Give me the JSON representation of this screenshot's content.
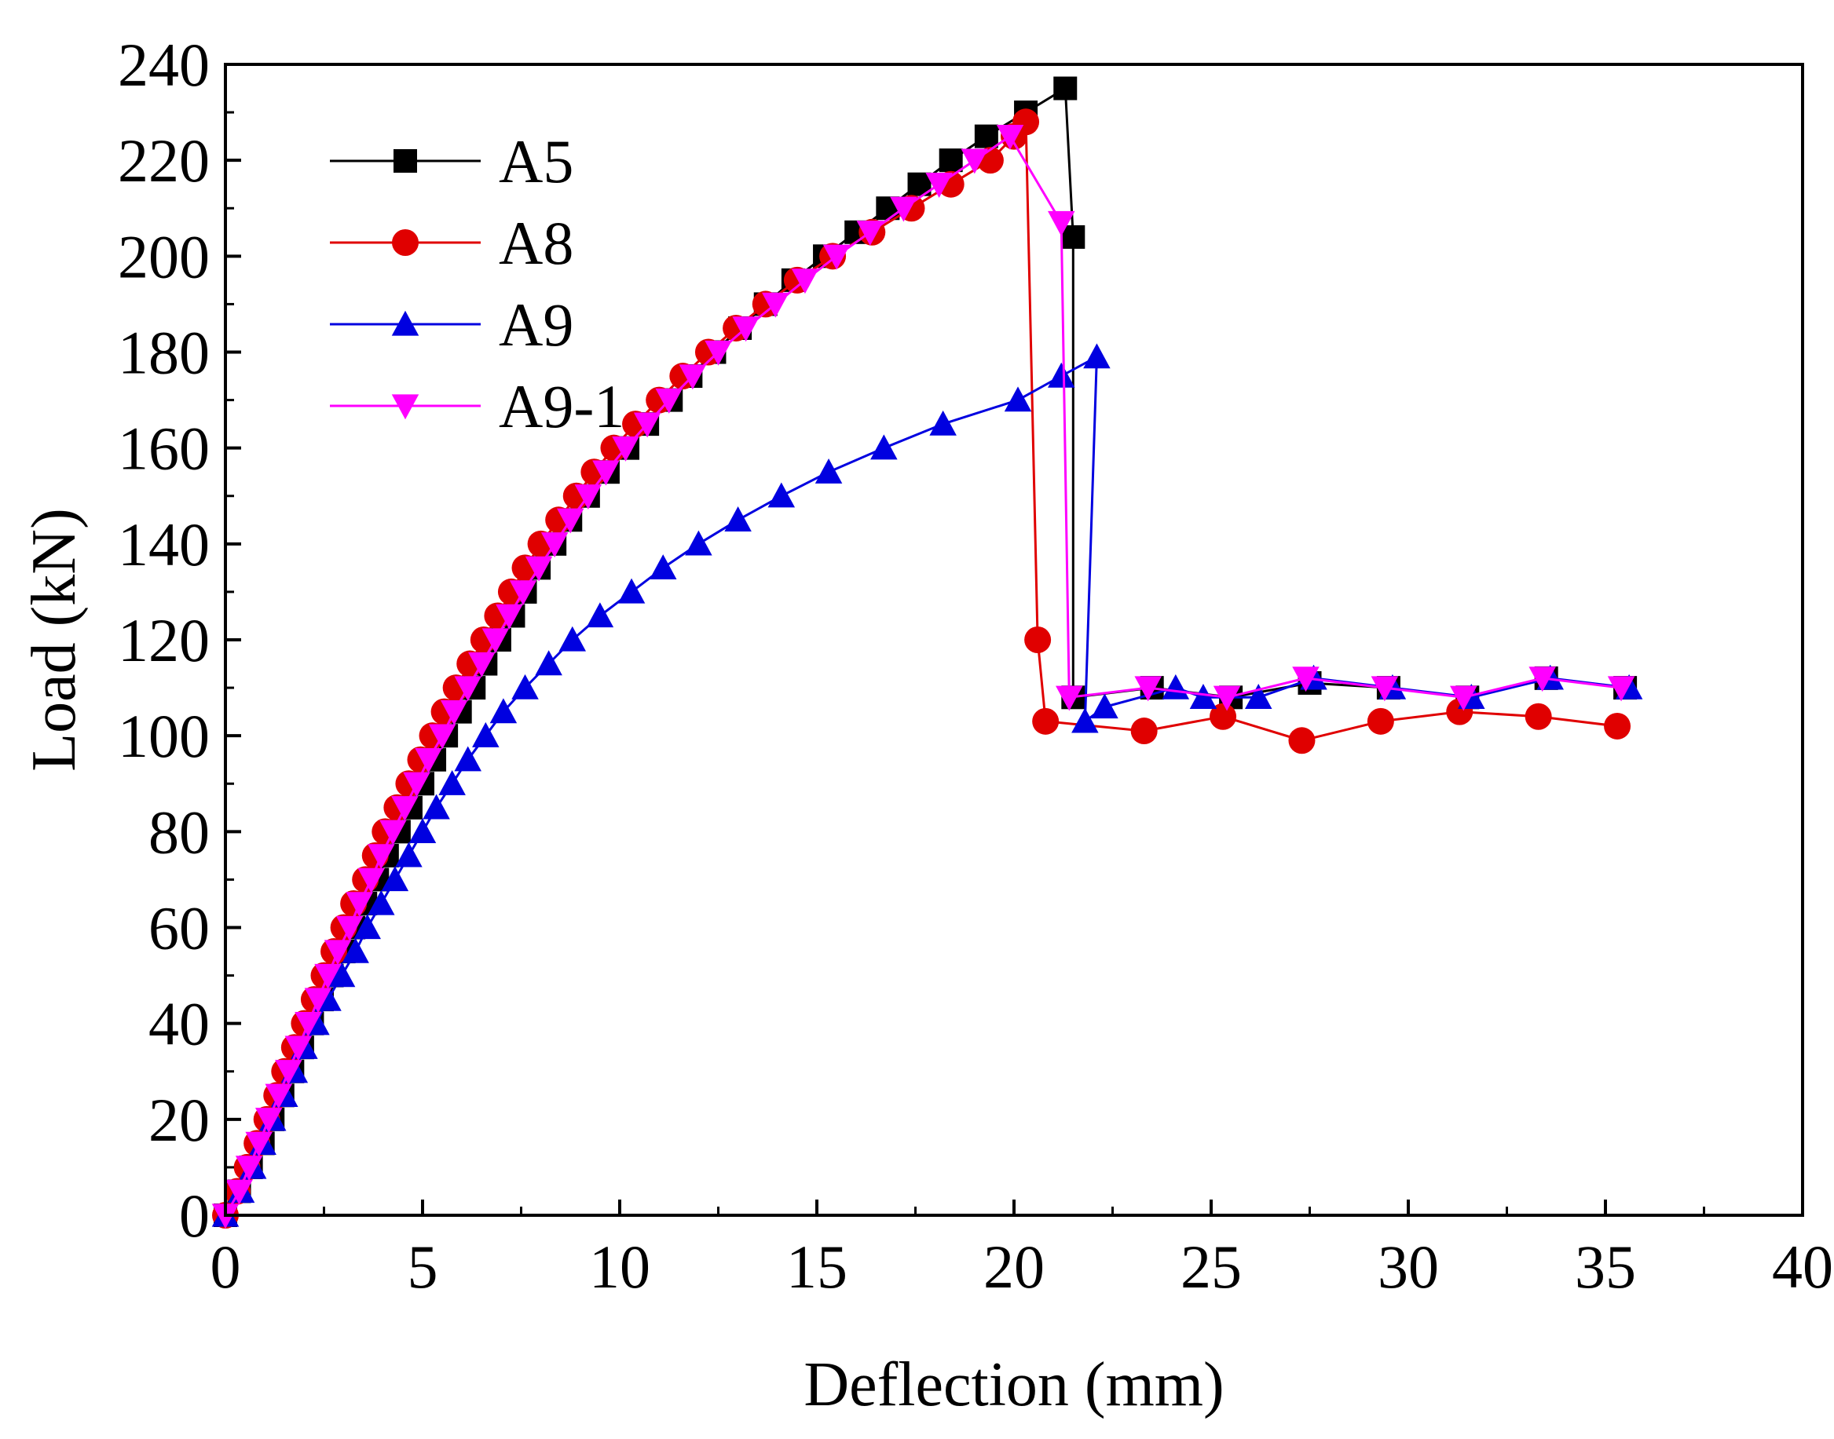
{
  "chart_data": {
    "type": "line",
    "title": "",
    "xlabel": "Deflection (mm)",
    "ylabel": "Load (kN)",
    "xlim": [
      0,
      40
    ],
    "ylim": [
      0,
      240
    ],
    "xticks": [
      "0",
      "5",
      "10",
      "15",
      "20",
      "25",
      "30",
      "35",
      "40"
    ],
    "yticks": [
      "0",
      "20",
      "40",
      "60",
      "80",
      "100",
      "120",
      "140",
      "160",
      "180",
      "200",
      "220",
      "240"
    ],
    "grid": false,
    "legend_position": "top-left",
    "series": [
      {
        "name": "A5",
        "color": "#000000",
        "marker": "square",
        "points": [
          [
            0,
            0
          ],
          [
            0.35,
            5
          ],
          [
            0.65,
            10
          ],
          [
            0.95,
            15
          ],
          [
            1.2,
            20
          ],
          [
            1.45,
            25
          ],
          [
            1.7,
            30
          ],
          [
            1.95,
            35
          ],
          [
            2.2,
            40
          ],
          [
            2.45,
            45
          ],
          [
            2.7,
            50
          ],
          [
            3.0,
            55
          ],
          [
            3.25,
            60
          ],
          [
            3.55,
            65
          ],
          [
            3.85,
            70
          ],
          [
            4.1,
            75
          ],
          [
            4.4,
            80
          ],
          [
            4.7,
            85
          ],
          [
            5.0,
            90
          ],
          [
            5.3,
            95
          ],
          [
            5.6,
            100
          ],
          [
            5.95,
            105
          ],
          [
            6.3,
            110
          ],
          [
            6.6,
            115
          ],
          [
            6.95,
            120
          ],
          [
            7.3,
            125
          ],
          [
            7.6,
            130
          ],
          [
            7.95,
            135
          ],
          [
            8.35,
            140
          ],
          [
            8.75,
            145
          ],
          [
            9.2,
            150
          ],
          [
            9.7,
            155
          ],
          [
            10.2,
            160
          ],
          [
            10.7,
            165
          ],
          [
            11.3,
            170
          ],
          [
            11.8,
            175
          ],
          [
            12.4,
            180
          ],
          [
            13.05,
            185
          ],
          [
            13.7,
            190
          ],
          [
            14.4,
            195
          ],
          [
            15.2,
            200
          ],
          [
            16.0,
            205
          ],
          [
            16.8,
            210
          ],
          [
            17.6,
            215
          ],
          [
            18.4,
            220
          ],
          [
            19.3,
            225
          ],
          [
            20.3,
            230
          ],
          [
            21.3,
            235
          ],
          [
            21.5,
            204
          ],
          [
            21.5,
            108
          ],
          [
            23.5,
            110
          ],
          [
            25.5,
            108
          ],
          [
            27.5,
            111
          ],
          [
            29.5,
            110
          ],
          [
            31.5,
            108
          ],
          [
            33.5,
            112
          ],
          [
            35.5,
            110
          ]
        ]
      },
      {
        "name": "A8",
        "color": "#e00000",
        "marker": "circle",
        "points": [
          [
            0,
            0
          ],
          [
            0.3,
            5
          ],
          [
            0.55,
            10
          ],
          [
            0.8,
            15
          ],
          [
            1.05,
            20
          ],
          [
            1.3,
            25
          ],
          [
            1.5,
            30
          ],
          [
            1.75,
            35
          ],
          [
            2.0,
            40
          ],
          [
            2.25,
            45
          ],
          [
            2.5,
            50
          ],
          [
            2.75,
            55
          ],
          [
            3.0,
            60
          ],
          [
            3.25,
            65
          ],
          [
            3.55,
            70
          ],
          [
            3.8,
            75
          ],
          [
            4.05,
            80
          ],
          [
            4.35,
            85
          ],
          [
            4.65,
            90
          ],
          [
            4.95,
            95
          ],
          [
            5.25,
            100
          ],
          [
            5.55,
            105
          ],
          [
            5.85,
            110
          ],
          [
            6.2,
            115
          ],
          [
            6.55,
            120
          ],
          [
            6.9,
            125
          ],
          [
            7.25,
            130
          ],
          [
            7.6,
            135
          ],
          [
            8.0,
            140
          ],
          [
            8.45,
            145
          ],
          [
            8.9,
            150
          ],
          [
            9.35,
            155
          ],
          [
            9.85,
            160
          ],
          [
            10.4,
            165
          ],
          [
            11.0,
            170
          ],
          [
            11.6,
            175
          ],
          [
            12.25,
            180
          ],
          [
            12.95,
            185
          ],
          [
            13.7,
            190
          ],
          [
            14.5,
            195
          ],
          [
            15.4,
            200
          ],
          [
            16.4,
            205
          ],
          [
            17.4,
            210
          ],
          [
            18.4,
            215
          ],
          [
            19.4,
            220
          ],
          [
            20.0,
            225
          ],
          [
            20.3,
            228
          ],
          [
            20.6,
            120
          ],
          [
            20.8,
            103
          ],
          [
            23.3,
            101
          ],
          [
            25.3,
            104
          ],
          [
            27.3,
            99
          ],
          [
            29.3,
            103
          ],
          [
            31.3,
            105
          ],
          [
            33.3,
            104
          ],
          [
            35.3,
            102
          ]
        ]
      },
      {
        "name": "A9",
        "color": "#0000e0",
        "marker": "triangle-up",
        "points": [
          [
            0,
            0
          ],
          [
            0.4,
            5
          ],
          [
            0.7,
            10
          ],
          [
            0.95,
            15
          ],
          [
            1.2,
            20
          ],
          [
            1.5,
            25
          ],
          [
            1.75,
            30
          ],
          [
            2.0,
            35
          ],
          [
            2.3,
            40
          ],
          [
            2.6,
            45
          ],
          [
            2.95,
            50
          ],
          [
            3.3,
            55
          ],
          [
            3.6,
            60
          ],
          [
            3.95,
            65
          ],
          [
            4.3,
            70
          ],
          [
            4.65,
            75
          ],
          [
            5.0,
            80
          ],
          [
            5.35,
            85
          ],
          [
            5.75,
            90
          ],
          [
            6.15,
            95
          ],
          [
            6.6,
            100
          ],
          [
            7.05,
            105
          ],
          [
            7.6,
            110
          ],
          [
            8.2,
            115
          ],
          [
            8.8,
            120
          ],
          [
            9.5,
            125
          ],
          [
            10.3,
            130
          ],
          [
            11.1,
            135
          ],
          [
            12.0,
            140
          ],
          [
            13.0,
            145
          ],
          [
            14.1,
            150
          ],
          [
            15.3,
            155
          ],
          [
            16.7,
            160
          ],
          [
            18.2,
            165
          ],
          [
            20.1,
            170
          ],
          [
            21.2,
            175
          ],
          [
            22.1,
            179
          ],
          [
            21.8,
            103
          ],
          [
            22.3,
            106
          ],
          [
            24.1,
            110
          ],
          [
            24.8,
            108
          ],
          [
            26.2,
            108
          ],
          [
            27.6,
            112
          ],
          [
            29.6,
            110
          ],
          [
            31.6,
            108
          ],
          [
            33.6,
            112
          ],
          [
            35.6,
            110
          ]
        ]
      },
      {
        "name": "A9-1",
        "color": "#ff00ff",
        "marker": "triangle-down",
        "points": [
          [
            0,
            0
          ],
          [
            0.35,
            5
          ],
          [
            0.6,
            10
          ],
          [
            0.85,
            15
          ],
          [
            1.1,
            20
          ],
          [
            1.35,
            25
          ],
          [
            1.6,
            30
          ],
          [
            1.85,
            35
          ],
          [
            2.1,
            40
          ],
          [
            2.35,
            45
          ],
          [
            2.6,
            50
          ],
          [
            2.85,
            55
          ],
          [
            3.15,
            60
          ],
          [
            3.4,
            65
          ],
          [
            3.7,
            70
          ],
          [
            3.95,
            75
          ],
          [
            4.25,
            80
          ],
          [
            4.55,
            85
          ],
          [
            4.85,
            90
          ],
          [
            5.15,
            95
          ],
          [
            5.5,
            100
          ],
          [
            5.8,
            105
          ],
          [
            6.15,
            110
          ],
          [
            6.5,
            115
          ],
          [
            6.85,
            120
          ],
          [
            7.2,
            125
          ],
          [
            7.55,
            130
          ],
          [
            7.95,
            135
          ],
          [
            8.35,
            140
          ],
          [
            8.75,
            145
          ],
          [
            9.2,
            150
          ],
          [
            9.65,
            155
          ],
          [
            10.15,
            160
          ],
          [
            10.7,
            165
          ],
          [
            11.25,
            170
          ],
          [
            11.85,
            175
          ],
          [
            12.5,
            180
          ],
          [
            13.2,
            185
          ],
          [
            13.95,
            190
          ],
          [
            14.7,
            195
          ],
          [
            15.5,
            200
          ],
          [
            16.35,
            205
          ],
          [
            17.2,
            210
          ],
          [
            18.1,
            215
          ],
          [
            19.0,
            220
          ],
          [
            19.9,
            225
          ],
          [
            21.2,
            207
          ],
          [
            21.4,
            108
          ],
          [
            23.4,
            110
          ],
          [
            25.4,
            108
          ],
          [
            27.4,
            112
          ],
          [
            29.4,
            110
          ],
          [
            31.4,
            108
          ],
          [
            33.4,
            112
          ],
          [
            35.4,
            110
          ]
        ]
      }
    ]
  }
}
